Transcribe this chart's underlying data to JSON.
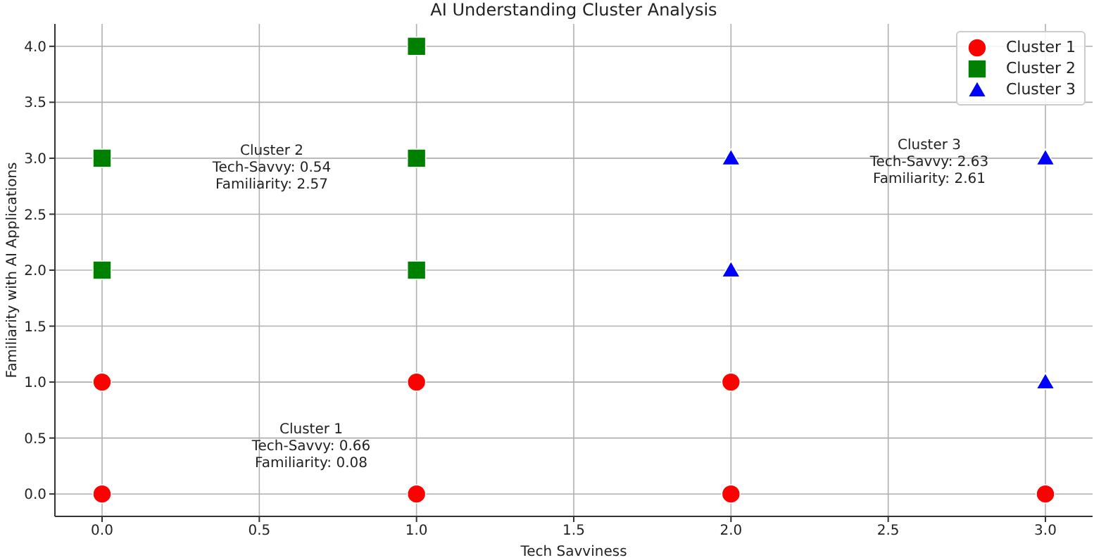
{
  "chart_data": {
    "type": "scatter",
    "title": "AI Understanding Cluster Analysis",
    "xlabel": "Tech Savviness",
    "ylabel": "Familiarity with AI Applications",
    "series": [
      {
        "name": "Cluster 1",
        "color": "#ff0000",
        "marker": "circle",
        "x": [
          0,
          0,
          1,
          1,
          2,
          2,
          3
        ],
        "values": [
          0,
          1,
          0,
          1,
          0,
          1,
          0
        ]
      },
      {
        "name": "Cluster 2",
        "color": "#008000",
        "marker": "square",
        "x": [
          0,
          0,
          1,
          1,
          1
        ],
        "values": [
          2,
          3,
          2,
          3,
          4
        ]
      },
      {
        "name": "Cluster 3",
        "color": "#0000ff",
        "marker": "triangle",
        "x": [
          2,
          2,
          3,
          3
        ],
        "values": [
          2,
          3,
          1,
          3
        ]
      }
    ],
    "annotations": [
      "Cluster 1\nTech-Savvy: 0.66\nFamiliarity: 0.08",
      "Cluster 2\nTech-Savvy: 0.54\nFamiliarity: 2.57",
      "Cluster 3\nTech-Savvy: 2.63\nFamiliarity: 2.61"
    ],
    "xlim": [
      -0.15,
      3.15
    ],
    "xticks": [
      {
        "value": 0,
        "label": "0.0"
      },
      {
        "value": 0.5,
        "label": "0.5"
      },
      {
        "value": 1,
        "label": "1.0"
      },
      {
        "value": 1.5,
        "label": "1.5"
      },
      {
        "value": 2,
        "label": "2.0"
      },
      {
        "value": 2.5,
        "label": "2.5"
      },
      {
        "value": 3,
        "label": "3.0"
      }
    ],
    "ylim": [
      -0.2,
      4.2
    ],
    "yticks": [
      {
        "value": 0,
        "label": "0.0"
      },
      {
        "value": 0.5,
        "label": "0.5"
      },
      {
        "value": 1,
        "label": "1.0"
      },
      {
        "value": 1.5,
        "label": "1.5"
      },
      {
        "value": 2,
        "label": "2.0"
      },
      {
        "value": 2.5,
        "label": "2.5"
      },
      {
        "value": 3,
        "label": "3.0"
      },
      {
        "value": 3.5,
        "label": "3.5"
      },
      {
        "value": 4,
        "label": "4.0"
      }
    ],
    "grid": true,
    "legend": "top right"
  }
}
